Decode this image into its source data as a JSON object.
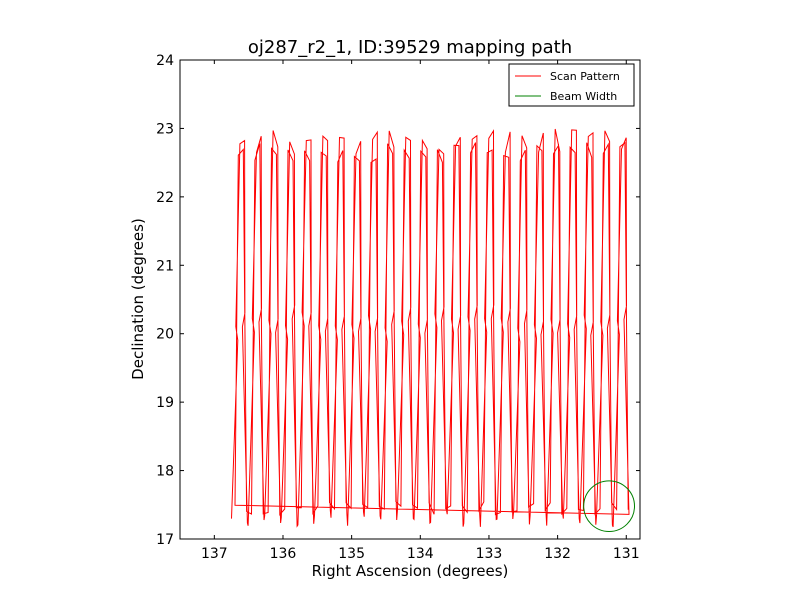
{
  "chart_data": {
    "type": "line",
    "title": "oj287_r2_1, ID:39529 mapping path",
    "xlabel": "Right Ascension (degrees)",
    "ylabel": "Declination (degrees)",
    "xlim": [
      137.5,
      130.8
    ],
    "ylim": [
      17,
      24
    ],
    "x_inverted": true,
    "xticks": [
      137,
      136,
      135,
      134,
      133,
      132,
      131
    ],
    "yticks": [
      17,
      18,
      19,
      20,
      21,
      22,
      23,
      24
    ],
    "grid": false,
    "legend_position": "top-right",
    "series": [
      {
        "name": "Scan Pattern",
        "color": "#ff0000",
        "style": "zigzag raster",
        "ra_start": 136.7,
        "ra_end": 130.9,
        "dec_min": 17.3,
        "dec_max": 23.0,
        "columns": 48
      },
      {
        "name": "Beam Width",
        "color": "#008000",
        "shape": "circle",
        "center": [
          131.25,
          17.48
        ],
        "radius_deg": 0.37
      }
    ]
  }
}
